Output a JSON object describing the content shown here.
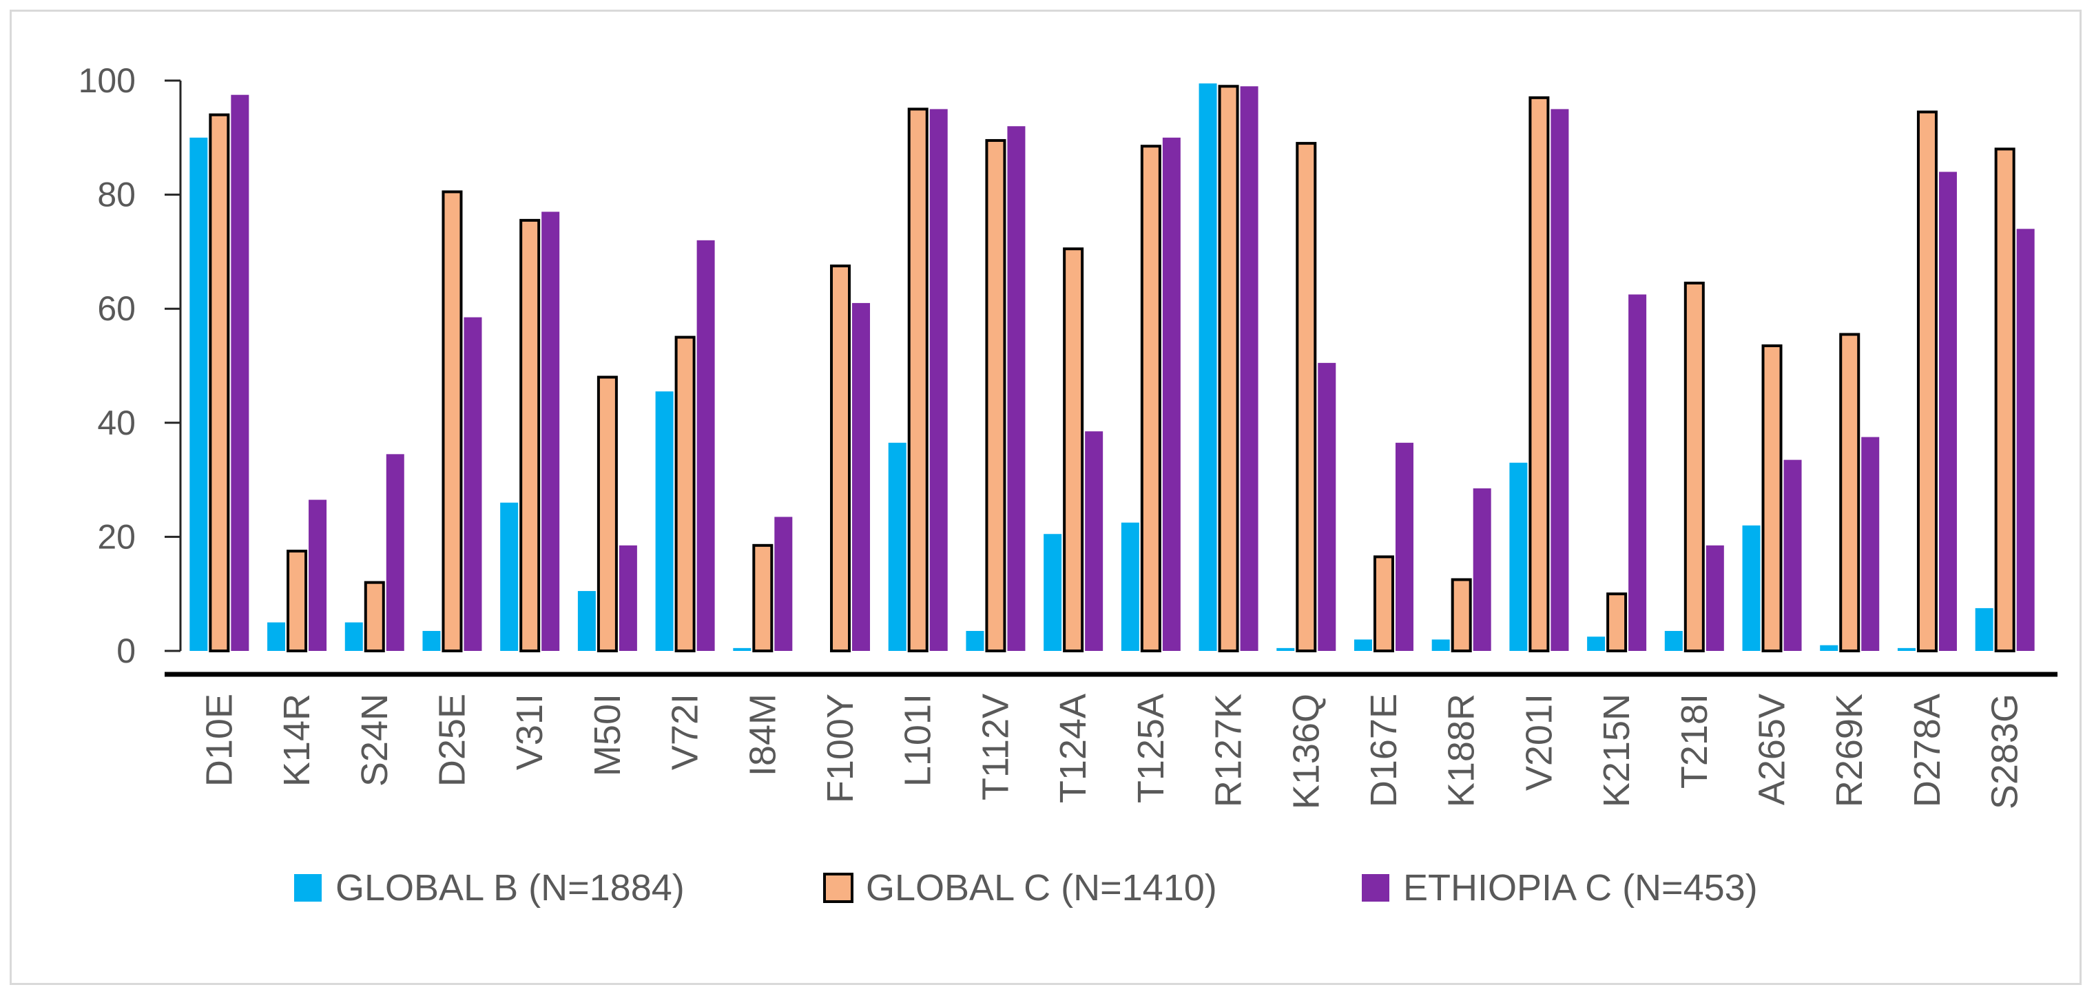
{
  "chart_data": {
    "type": "bar",
    "title": "",
    "xlabel": "",
    "ylabel": "",
    "ylim": [
      0,
      100
    ],
    "yticks": [
      0,
      20,
      40,
      60,
      80,
      100
    ],
    "grid": false,
    "legend_position": "bottom",
    "categories": [
      "D10E",
      "K14R",
      "S24N",
      "D25E",
      "V31I",
      "M50I",
      "V72I",
      "I84M",
      "F100Y",
      "L101I",
      "T112V",
      "T124A",
      "T125A",
      "R127K",
      "K136Q",
      "D167E",
      "K188R",
      "V201I",
      "K215N",
      "T218I",
      "A265V",
      "R269K",
      "D278A",
      "S283G"
    ],
    "series": [
      {
        "name": "GLOBAL B (N=1884)",
        "color": "#00b0f0",
        "outline": "",
        "values": [
          90,
          5,
          5,
          3.5,
          26,
          10.5,
          45.5,
          0.5,
          0,
          36.5,
          3.5,
          20.5,
          22.5,
          99.5,
          0.5,
          2,
          2,
          33,
          2.5,
          3.5,
          22,
          1,
          0.5,
          7.5
        ]
      },
      {
        "name": "GLOBAL C (N=1410)",
        "color": "#f8b183",
        "outline": "#000000",
        "values": [
          94,
          17.5,
          12,
          80.5,
          75.5,
          48,
          55,
          18.5,
          67.5,
          95,
          89.5,
          70.5,
          88.5,
          99,
          89,
          16.5,
          12.5,
          97,
          10,
          64.5,
          53.5,
          55.5,
          94.5,
          88
        ]
      },
      {
        "name": "ETHIOPIA C (N=453)",
        "color": "#7f2aa5",
        "outline": "",
        "values": [
          97.5,
          26.5,
          34.5,
          58.5,
          77,
          18.5,
          72,
          23.5,
          61,
          95,
          92,
          38.5,
          90,
          99,
          50.5,
          36.5,
          28.5,
          95,
          62.5,
          18.5,
          33.5,
          37.5,
          84,
          74
        ]
      }
    ]
  }
}
